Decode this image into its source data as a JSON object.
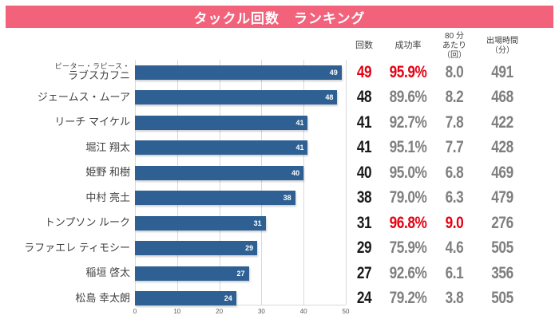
{
  "title": "タックル回数　ランキング",
  "colors": {
    "banner": "#f2627b",
    "bar": "#2e6093",
    "red": "#e60012",
    "count_text": "#1a1a1a",
    "stat_text": "#7f7f7f"
  },
  "columns": {
    "count": "回数",
    "success": "成功率",
    "per80_line1": "80 分",
    "per80_line2": "あたり（回）",
    "time_line1": "出場時間",
    "time_line2": "（分）"
  },
  "axis": {
    "max": 50,
    "ticks": [
      "0",
      "10",
      "20",
      "30",
      "40",
      "50"
    ]
  },
  "players": [
    {
      "name_prefix": "ピーター・ラピース・",
      "name": "ラブスカフニ",
      "count": 49,
      "success": "95.9%",
      "per80": "8.0",
      "time": "491",
      "highlight": [
        "count",
        "success"
      ]
    },
    {
      "name": "ジェームス・ムーア",
      "count": 48,
      "success": "89.6%",
      "per80": "8.2",
      "time": "468",
      "highlight": []
    },
    {
      "name": "リーチ マイケル",
      "count": 41,
      "success": "92.7%",
      "per80": "7.8",
      "time": "422",
      "highlight": []
    },
    {
      "name": "堀江 翔太",
      "count": 41,
      "success": "95.1%",
      "per80": "7.7",
      "time": "428",
      "highlight": []
    },
    {
      "name": "姫野 和樹",
      "count": 40,
      "success": "95.0%",
      "per80": "6.8",
      "time": "469",
      "highlight": []
    },
    {
      "name": "中村 亮土",
      "count": 38,
      "success": "79.0%",
      "per80": "6.3",
      "time": "479",
      "highlight": []
    },
    {
      "name": "トンプソン ルーク",
      "count": 31,
      "success": "96.8%",
      "per80": "9.0",
      "time": "276",
      "highlight": [
        "success",
        "per80"
      ]
    },
    {
      "name": "ラファエレ ティモシー",
      "count": 29,
      "success": "75.9%",
      "per80": "4.6",
      "time": "505",
      "highlight": []
    },
    {
      "name": "稲垣 啓太",
      "count": 27,
      "success": "92.6%",
      "per80": "6.1",
      "time": "356",
      "highlight": []
    },
    {
      "name": "松島 幸太朗",
      "count": 24,
      "success": "79.2%",
      "per80": "3.8",
      "time": "505",
      "highlight": []
    }
  ],
  "chart_data": {
    "type": "bar",
    "orientation": "horizontal",
    "title": "タックル回数　ランキング",
    "categories": [
      "ピーター・ラピース・ラブスカフニ",
      "ジェームス・ムーア",
      "リーチ マイケル",
      "堀江 翔太",
      "姫野 和樹",
      "中村 亮土",
      "トンプソン ルーク",
      "ラファエレ ティモシー",
      "稲垣 啓太",
      "松島 幸太朗"
    ],
    "series": [
      {
        "name": "回数",
        "values": [
          49,
          48,
          41,
          41,
          40,
          38,
          31,
          29,
          27,
          24
        ]
      },
      {
        "name": "成功率(%)",
        "values": [
          95.9,
          89.6,
          92.7,
          95.1,
          95.0,
          79.0,
          96.8,
          75.9,
          92.6,
          79.2
        ]
      },
      {
        "name": "80分あたり(回)",
        "values": [
          8.0,
          8.2,
          7.8,
          7.7,
          6.8,
          6.3,
          9.0,
          4.6,
          6.1,
          3.8
        ]
      },
      {
        "name": "出場時間(分)",
        "values": [
          491,
          468,
          422,
          428,
          469,
          479,
          276,
          505,
          356,
          505
        ]
      }
    ],
    "xlabel": "",
    "ylabel": "",
    "xlim": [
      0,
      50
    ],
    "xticks": [
      0,
      10,
      20,
      30,
      40,
      50
    ],
    "grid": true,
    "legend": false,
    "bar_color": "#2e6093"
  }
}
